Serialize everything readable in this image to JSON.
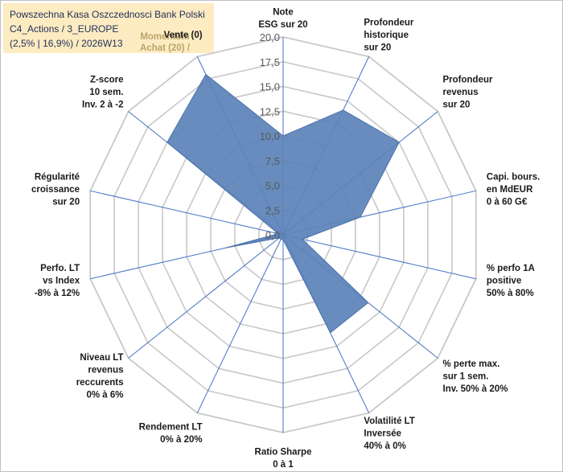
{
  "header": {
    "line1": "Powszechna Kasa Oszczednosci Bank Polski",
    "line2": "C4_Actions / 3_EUROPE",
    "line3": "(2,5% | 16,9%) / 2026W13",
    "momentum": [
      "Momentum",
      "Achat (20) /"
    ]
  },
  "colors": {
    "fill": "#5b82b8",
    "stroke": "#4a72ab",
    "grid": "#c8c8c8",
    "axis": "#4472c4",
    "box": "#fdebc2"
  },
  "chart_data": {
    "type": "radar",
    "r_range": [
      0,
      20
    ],
    "ticks": [
      "0,0",
      "2,5",
      "5,0",
      "7,5",
      "10,0",
      "12,5",
      "15,0",
      "17,5",
      "20,0"
    ],
    "grid": true,
    "categories": [
      [
        "Note",
        "ESG sur 20"
      ],
      [
        "Profondeur",
        "historique",
        "sur 20"
      ],
      [
        "Profondeur",
        "revenus",
        "sur 20"
      ],
      [
        "Capi. bours.",
        "en MdEUR",
        "0 à 60 G€"
      ],
      [
        "% perfo 1A",
        "positive",
        "50% à 80%"
      ],
      [
        "% perte max.",
        "sur 1 sem.",
        "Inv. 50% à 20%"
      ],
      [
        "Volatilité LT",
        "Inversée",
        "40% à 0%"
      ],
      [
        "Ratio Sharpe",
        "0 à 1"
      ],
      [
        "Rendement LT",
        "0% à 20%"
      ],
      [
        "Niveau LT",
        "revenus",
        "reccurents",
        "0% à 6%"
      ],
      [
        "Perfo. LT",
        "vs Index",
        "-8% à 12%"
      ],
      [
        "Régularité",
        "croissance",
        "sur 20"
      ],
      [
        "Z-score",
        "10 sem.",
        "Inv. 2 à -2"
      ],
      [
        "Vente (0)"
      ]
    ],
    "values": [
      10,
      14,
      15,
      8,
      2,
      11,
      11,
      0.5,
      0.5,
      0.5,
      6,
      0.5,
      15,
      18
    ]
  }
}
